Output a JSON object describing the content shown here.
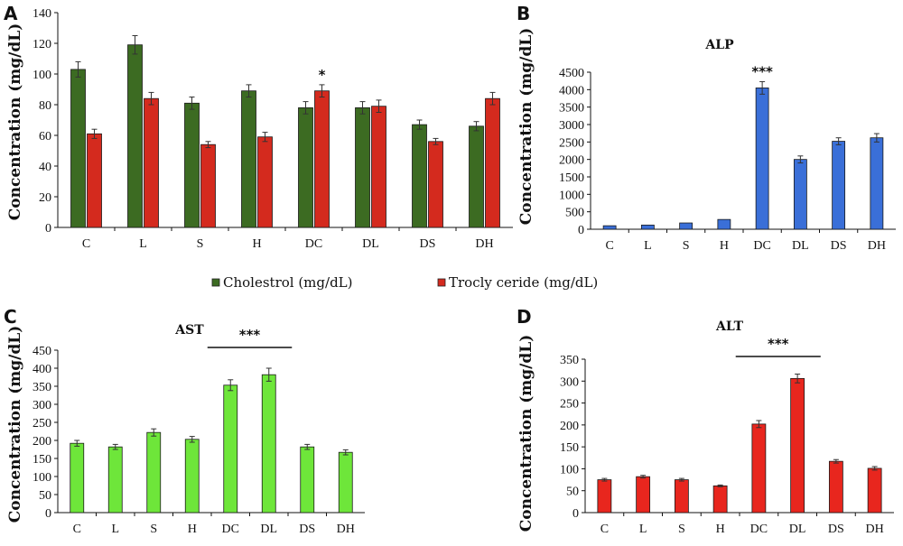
{
  "chart_data": [
    {
      "panel": "A",
      "type": "bar",
      "title": "",
      "ylabel": "Concentration (mg/dL)",
      "categories": [
        "C",
        "L",
        "S",
        "H",
        "DC",
        "DL",
        "DS",
        "DH"
      ],
      "ylim": [
        0,
        140
      ],
      "yticks": [
        0,
        20,
        40,
        60,
        80,
        100,
        120,
        140
      ],
      "series": [
        {
          "name": "Cholestrol (mg/dL)",
          "color": "#3c6b22",
          "values": [
            103,
            119,
            81,
            89,
            78,
            78,
            67,
            66
          ],
          "errors": [
            5,
            6,
            4,
            4,
            4,
            4,
            3,
            3
          ]
        },
        {
          "name": "Trocly ceride (mg/dL)",
          "color": "#d42a1e",
          "values": [
            61,
            84,
            54,
            59,
            89,
            79,
            56,
            84
          ],
          "errors": [
            3,
            4,
            2,
            3,
            4,
            4,
            2,
            4
          ]
        }
      ],
      "annotations": [
        {
          "category": "DC",
          "series": 1,
          "text": "*"
        }
      ]
    },
    {
      "panel": "B",
      "type": "bar",
      "title": "ALP",
      "ylabel": "Concentration (mg/dL)",
      "categories": [
        "C",
        "L",
        "S",
        "H",
        "DC",
        "DL",
        "DS",
        "DH"
      ],
      "ylim": [
        0,
        4500
      ],
      "yticks": [
        0,
        500,
        1000,
        1500,
        2000,
        2500,
        3000,
        3500,
        4000,
        4500
      ],
      "series": [
        {
          "color": "#3a6fd8",
          "values": [
            100,
            120,
            180,
            280,
            4050,
            2000,
            2520,
            2620
          ],
          "errors": [
            0,
            0,
            0,
            0,
            180,
            100,
            100,
            120
          ]
        }
      ],
      "annotations": [
        {
          "category": "DC",
          "series": 0,
          "text": "***"
        }
      ]
    },
    {
      "panel": "C",
      "type": "bar",
      "title": "AST",
      "ylabel": "Concentration (mg/dL)",
      "categories": [
        "C",
        "L",
        "S",
        "H",
        "DC",
        "DL",
        "DS",
        "DH"
      ],
      "ylim": [
        0,
        450
      ],
      "yticks": [
        0,
        50,
        100,
        150,
        200,
        250,
        300,
        350,
        400,
        450
      ],
      "series": [
        {
          "color": "#6ee63a",
          "values": [
            192,
            182,
            222,
            203,
            353,
            382,
            182,
            167
          ],
          "errors": [
            8,
            7,
            10,
            8,
            15,
            18,
            7,
            7
          ]
        }
      ],
      "bracket": {
        "from": "DC",
        "to": "DL",
        "text": "***"
      }
    },
    {
      "panel": "D",
      "type": "bar",
      "title": "ALT",
      "ylabel": "Concentration (mg/dL)",
      "categories": [
        "C",
        "L",
        "S",
        "H",
        "DC",
        "DL",
        "DS",
        "DH"
      ],
      "ylim": [
        0,
        350
      ],
      "yticks": [
        0,
        50,
        100,
        150,
        200,
        250,
        300,
        350
      ],
      "series": [
        {
          "color": "#e8261e",
          "values": [
            75,
            82,
            75,
            61,
            202,
            306,
            117,
            101
          ],
          "errors": [
            3,
            3,
            3,
            2,
            8,
            10,
            4,
            4
          ]
        }
      ],
      "bracket": {
        "from": "DC",
        "to": "DL",
        "text": "***"
      }
    }
  ]
}
